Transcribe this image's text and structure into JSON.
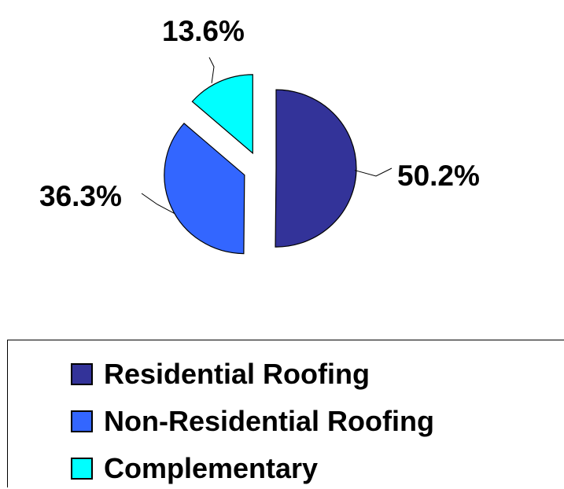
{
  "chart_data": {
    "type": "pie",
    "categories": [
      "Residential Roofing",
      "Non-Residential Roofing",
      "Complementary"
    ],
    "values": [
      50.2,
      36.3,
      13.6
    ],
    "data_labels": [
      "50.2%",
      "36.3%",
      "13.6%"
    ],
    "colors": [
      "#333399",
      "#3366FF",
      "#00FFFF"
    ],
    "exploded": true,
    "legend_position": "bottom",
    "title": "",
    "xlabel": "",
    "ylabel": ""
  }
}
